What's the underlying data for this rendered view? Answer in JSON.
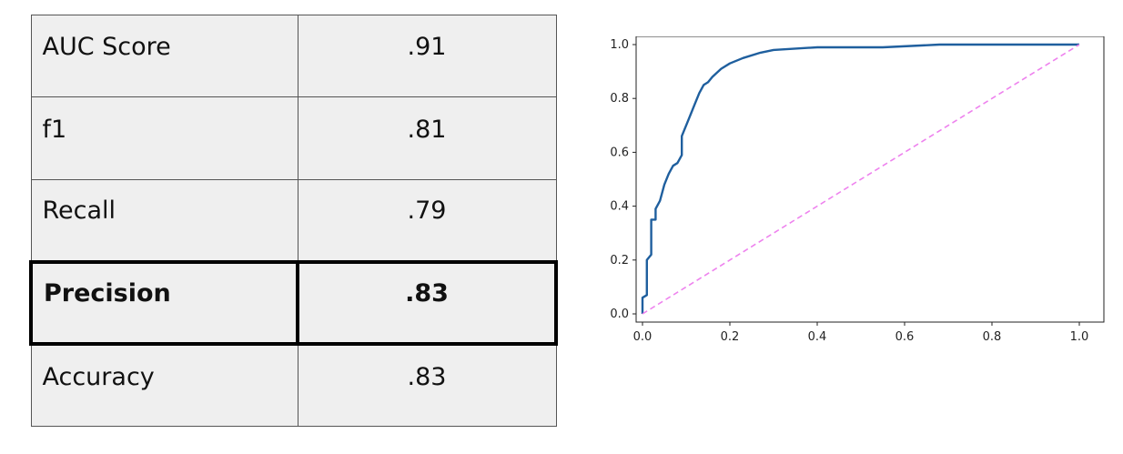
{
  "table": {
    "rows": [
      {
        "metric": "AUC Score",
        "value": ".91",
        "highlight": false
      },
      {
        "metric": "f1",
        "value": ".81",
        "highlight": false
      },
      {
        "metric": "Recall",
        "value": ".79",
        "highlight": false
      },
      {
        "metric": "Precision",
        "value": ".83",
        "highlight": true
      },
      {
        "metric": "Accuracy",
        "value": ".83",
        "highlight": false
      }
    ]
  },
  "chart_data": {
    "type": "line",
    "title": "",
    "xlabel": "",
    "ylabel": "",
    "xlim": [
      0.0,
      1.0
    ],
    "ylim": [
      0.0,
      1.0
    ],
    "x_ticks": [
      "0.0",
      "0.2",
      "0.4",
      "0.6",
      "0.8",
      "1.0"
    ],
    "y_ticks": [
      "0.0",
      "0.2",
      "0.4",
      "0.6",
      "0.8",
      "1.0"
    ],
    "grid": false,
    "series": [
      {
        "color": "#1f5f9e",
        "style": "solid",
        "points": [
          [
            0.0,
            0.0
          ],
          [
            0.0,
            0.06
          ],
          [
            0.01,
            0.07
          ],
          [
            0.01,
            0.2
          ],
          [
            0.02,
            0.22
          ],
          [
            0.02,
            0.35
          ],
          [
            0.03,
            0.35
          ],
          [
            0.03,
            0.39
          ],
          [
            0.04,
            0.42
          ],
          [
            0.05,
            0.48
          ],
          [
            0.06,
            0.52
          ],
          [
            0.07,
            0.55
          ],
          [
            0.08,
            0.56
          ],
          [
            0.09,
            0.59
          ],
          [
            0.09,
            0.66
          ],
          [
            0.1,
            0.7
          ],
          [
            0.11,
            0.74
          ],
          [
            0.12,
            0.78
          ],
          [
            0.13,
            0.82
          ],
          [
            0.14,
            0.85
          ],
          [
            0.15,
            0.86
          ],
          [
            0.16,
            0.88
          ],
          [
            0.18,
            0.91
          ],
          [
            0.2,
            0.93
          ],
          [
            0.23,
            0.95
          ],
          [
            0.27,
            0.97
          ],
          [
            0.3,
            0.98
          ],
          [
            0.4,
            0.99
          ],
          [
            0.55,
            0.99
          ],
          [
            0.68,
            1.0
          ],
          [
            1.0,
            1.0
          ]
        ]
      },
      {
        "color": "#ee82ee",
        "style": "dashed",
        "points": [
          [
            0.0,
            0.0
          ],
          [
            1.0,
            1.0
          ]
        ]
      }
    ]
  }
}
